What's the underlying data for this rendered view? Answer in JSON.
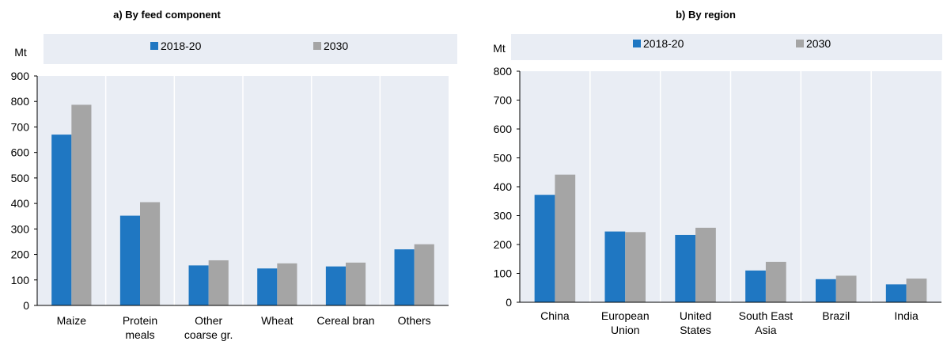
{
  "colors": {
    "series1": "#1f77c2",
    "series2": "#a5a5a5",
    "legend_band": "#e9edf4",
    "gridline": "#ffffff",
    "axis": "#000000"
  },
  "chart_data": [
    {
      "type": "bar",
      "title": "a) By feed component",
      "ylabel": "Mt",
      "ylim": [
        0,
        900
      ],
      "yticks": [
        0,
        100,
        200,
        300,
        400,
        500,
        600,
        700,
        800,
        900
      ],
      "categories": [
        [
          "Maize"
        ],
        [
          "Protein",
          "meals"
        ],
        [
          "Other",
          "coarse gr."
        ],
        [
          "Wheat"
        ],
        [
          "Cereal bran"
        ],
        [
          "Others"
        ]
      ],
      "series": [
        {
          "name": "2018-20",
          "values": [
            670,
            352,
            157,
            145,
            153,
            220
          ]
        },
        {
          "name": "2030",
          "values": [
            787,
            405,
            177,
            165,
            168,
            240
          ]
        }
      ],
      "legend": "top",
      "grid": true
    },
    {
      "type": "bar",
      "title": "b) By region",
      "ylabel": "Mt",
      "ylim": [
        0,
        800
      ],
      "yticks": [
        0,
        100,
        200,
        300,
        400,
        500,
        600,
        700,
        800
      ],
      "categories": [
        [
          "China"
        ],
        [
          "European",
          "Union"
        ],
        [
          "United",
          "States"
        ],
        [
          "South East",
          "Asia"
        ],
        [
          "Brazil"
        ],
        [
          "India"
        ]
      ],
      "series": [
        {
          "name": "2018-20",
          "values": [
            372,
            245,
            233,
            110,
            80,
            62
          ]
        },
        {
          "name": "2030",
          "values": [
            442,
            243,
            258,
            140,
            92,
            82
          ]
        }
      ],
      "legend": "top",
      "grid": true
    }
  ]
}
